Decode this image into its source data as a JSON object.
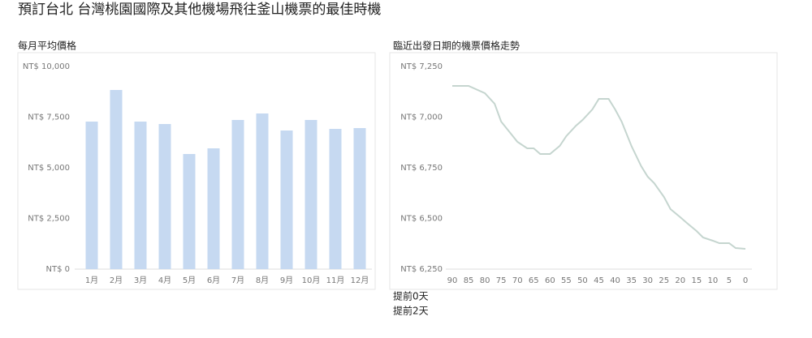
{
  "title": "預訂台北 台灣桃園國際及其他機場飛往釜山機票的最佳時機",
  "chart_data": [
    {
      "type": "bar",
      "title": "每月平均價格",
      "categories": [
        "1月",
        "2月",
        "3月",
        "4月",
        "5月",
        "6月",
        "7月",
        "8月",
        "9月",
        "10月",
        "11月",
        "12月"
      ],
      "values": [
        7280,
        8840,
        7280,
        7160,
        5680,
        5960,
        7360,
        7680,
        6840,
        7360,
        6920,
        6960
      ],
      "color": "#c6d9f1",
      "ylim": [
        0,
        10000
      ],
      "yticks": [
        {
          "value": 0,
          "label": "NT$ 0"
        },
        {
          "value": 2500,
          "label": "NT$ 2,500"
        },
        {
          "value": 5000,
          "label": "NT$ 5,000"
        },
        {
          "value": 7500,
          "label": "NT$ 7,500"
        },
        {
          "value": 10000,
          "label": "NT$ 10,000"
        }
      ],
      "grid": false
    },
    {
      "type": "line",
      "title": "臨近出發日期的機票價格走勢",
      "x": [
        90,
        85,
        80,
        77,
        75,
        72,
        70,
        67,
        65,
        63,
        60,
        57,
        55,
        52,
        50,
        47,
        45,
        42,
        40,
        38,
        35,
        32,
        30,
        28,
        25,
        23,
        20,
        18,
        15,
        13,
        10,
        8,
        5,
        3,
        0
      ],
      "values": [
        7154,
        7154,
        7118,
        7066,
        6978,
        6918,
        6878,
        6846,
        6846,
        6818,
        6818,
        6858,
        6906,
        6958,
        6986,
        7038,
        7090,
        7090,
        7038,
        6978,
        6858,
        6758,
        6706,
        6674,
        6606,
        6546,
        6506,
        6478,
        6438,
        6406,
        6390,
        6378,
        6378,
        6354,
        6350
      ],
      "color": "#c5d5cf",
      "xlim": [
        90,
        0
      ],
      "xticks": [
        90,
        85,
        80,
        75,
        70,
        65,
        60,
        55,
        50,
        45,
        40,
        35,
        30,
        25,
        20,
        15,
        10,
        5,
        0
      ],
      "ylim": [
        6250,
        7250
      ],
      "yticks": [
        {
          "value": 6250,
          "label": "NT$ 6,250"
        },
        {
          "value": 6500,
          "label": "NT$ 6,500"
        },
        {
          "value": 6750,
          "label": "NT$ 6,750"
        },
        {
          "value": 7000,
          "label": "NT$ 7,000"
        },
        {
          "value": 7250,
          "label": "NT$ 7,250"
        }
      ],
      "grid": false
    }
  ],
  "notes": [
    "提前0天",
    "提前2天"
  ]
}
